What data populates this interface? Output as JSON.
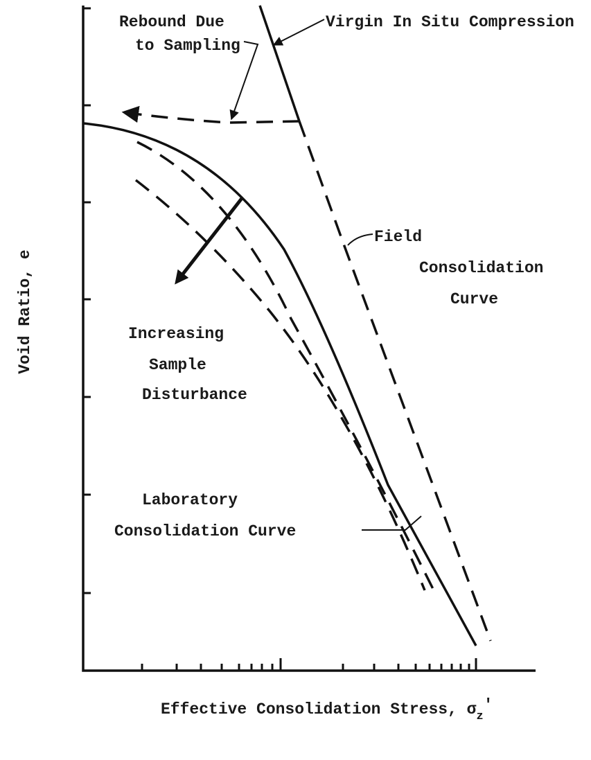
{
  "labels": {
    "rebound_1": "Rebound Due",
    "rebound_2": "to Sampling",
    "virgin": "Virgin In Situ Compression",
    "field_1": "Field",
    "field_2": "Consolidation",
    "field_3": "Curve",
    "disturbance_1": "Increasing",
    "disturbance_2": "Sample",
    "disturbance_3": "Disturbance",
    "lab_1": "Laboratory",
    "lab_2": "Consolidation Curve"
  },
  "y_label": "Void Ratio, e",
  "x_label": {
    "text": "Effective Consolidation Stress, σ",
    "subscript": "z",
    "suffix": "'"
  }
}
